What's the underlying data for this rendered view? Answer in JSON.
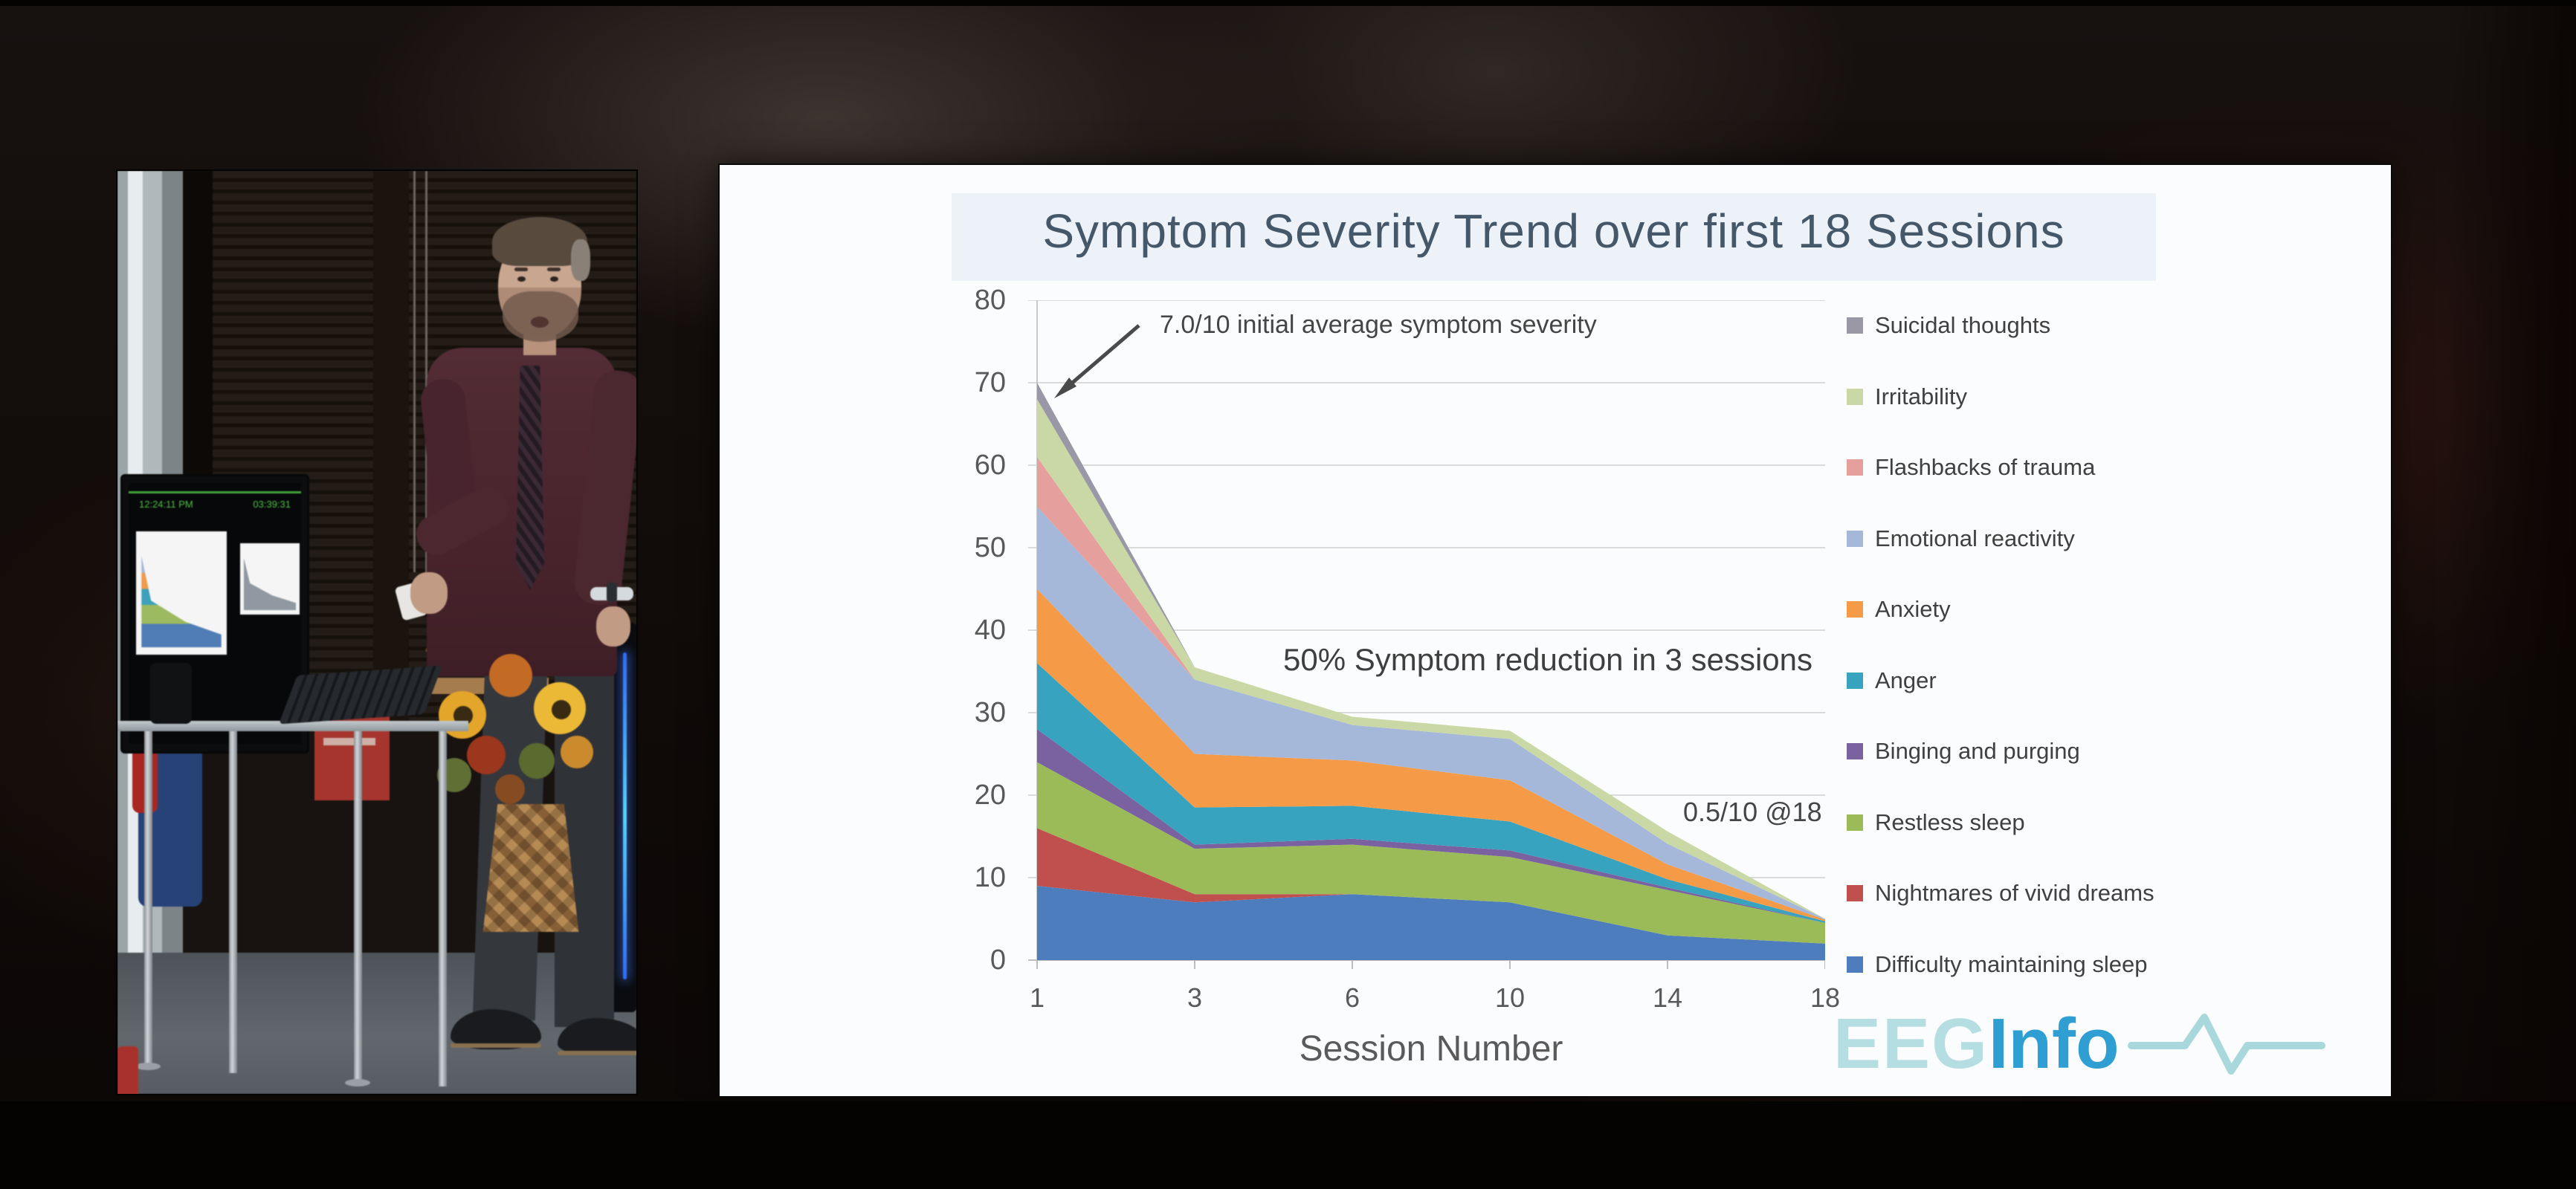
{
  "video_inset": {
    "monitor_time_left": "12:24:11 PM",
    "monitor_time_right": "03:39:31"
  },
  "slide": {
    "title": "Symptom Severity Trend over first 18 Sessions",
    "x_axis_title": "Session Number",
    "annotations": {
      "initial": "7.0/10 initial average symptom severity",
      "reduction": "50% Symptom reduction in 3 sessions",
      "final": "0.5/10 @18"
    },
    "logo": {
      "part1": "EEG",
      "part2": "Info"
    },
    "logo_colors": {
      "eeg": "#b5dee2",
      "info": "#2f9ed2"
    }
  },
  "chart_data": {
    "type": "area",
    "stacked": true,
    "title": "Symptom Severity Trend over first 18 Sessions",
    "xlabel": "Session Number",
    "ylabel": "",
    "categories": [
      1,
      3,
      6,
      10,
      14,
      18
    ],
    "ylim": [
      0,
      80
    ],
    "yticks": [
      0,
      10,
      20,
      30,
      40,
      50,
      60,
      70,
      80
    ],
    "grid": true,
    "legend_position": "right",
    "series_bottom_to_top": [
      {
        "name": "Difficulty maintaining sleep",
        "color": "#4e7dbd",
        "values": [
          9,
          7,
          8,
          7,
          3,
          2
        ]
      },
      {
        "name": "Nightmares of vivid dreams",
        "color": "#c0504d",
        "values": [
          7,
          1,
          0,
          0,
          0,
          0
        ]
      },
      {
        "name": "Restless sleep",
        "color": "#9bbb59",
        "values": [
          8,
          5.5,
          6,
          5.5,
          5.5,
          2.5
        ]
      },
      {
        "name": "Binging and purging",
        "color": "#7a62a0",
        "values": [
          4,
          0.5,
          0.7,
          0.8,
          0.3,
          0
        ]
      },
      {
        "name": "Anger",
        "color": "#37a3bf",
        "values": [
          8,
          4.5,
          4,
          3.5,
          1,
          0.2
        ]
      },
      {
        "name": "Anxiety",
        "color": "#f59a47",
        "values": [
          9,
          6.5,
          5.5,
          5,
          1.8,
          0.2
        ]
      },
      {
        "name": "Emotional reactivity",
        "color": "#a6b8d9",
        "values": [
          10,
          9,
          4.3,
          5,
          2.5,
          0.1
        ]
      },
      {
        "name": "Flashbacks of trauma",
        "color": "#e5a09d",
        "values": [
          6,
          0,
          0,
          0,
          0,
          0
        ]
      },
      {
        "name": "Irritability",
        "color": "#c9d8a4",
        "values": [
          7,
          1.5,
          1,
          1,
          1.5,
          0
        ]
      },
      {
        "name": "Suicidal thoughts",
        "color": "#9a97a6",
        "values": [
          2,
          0,
          0,
          0,
          0,
          0
        ]
      }
    ],
    "annotations": [
      "7.0/10 initial average symptom severity",
      "50% Symptom reduction in 3 sessions",
      "0.5/10 @18"
    ]
  }
}
